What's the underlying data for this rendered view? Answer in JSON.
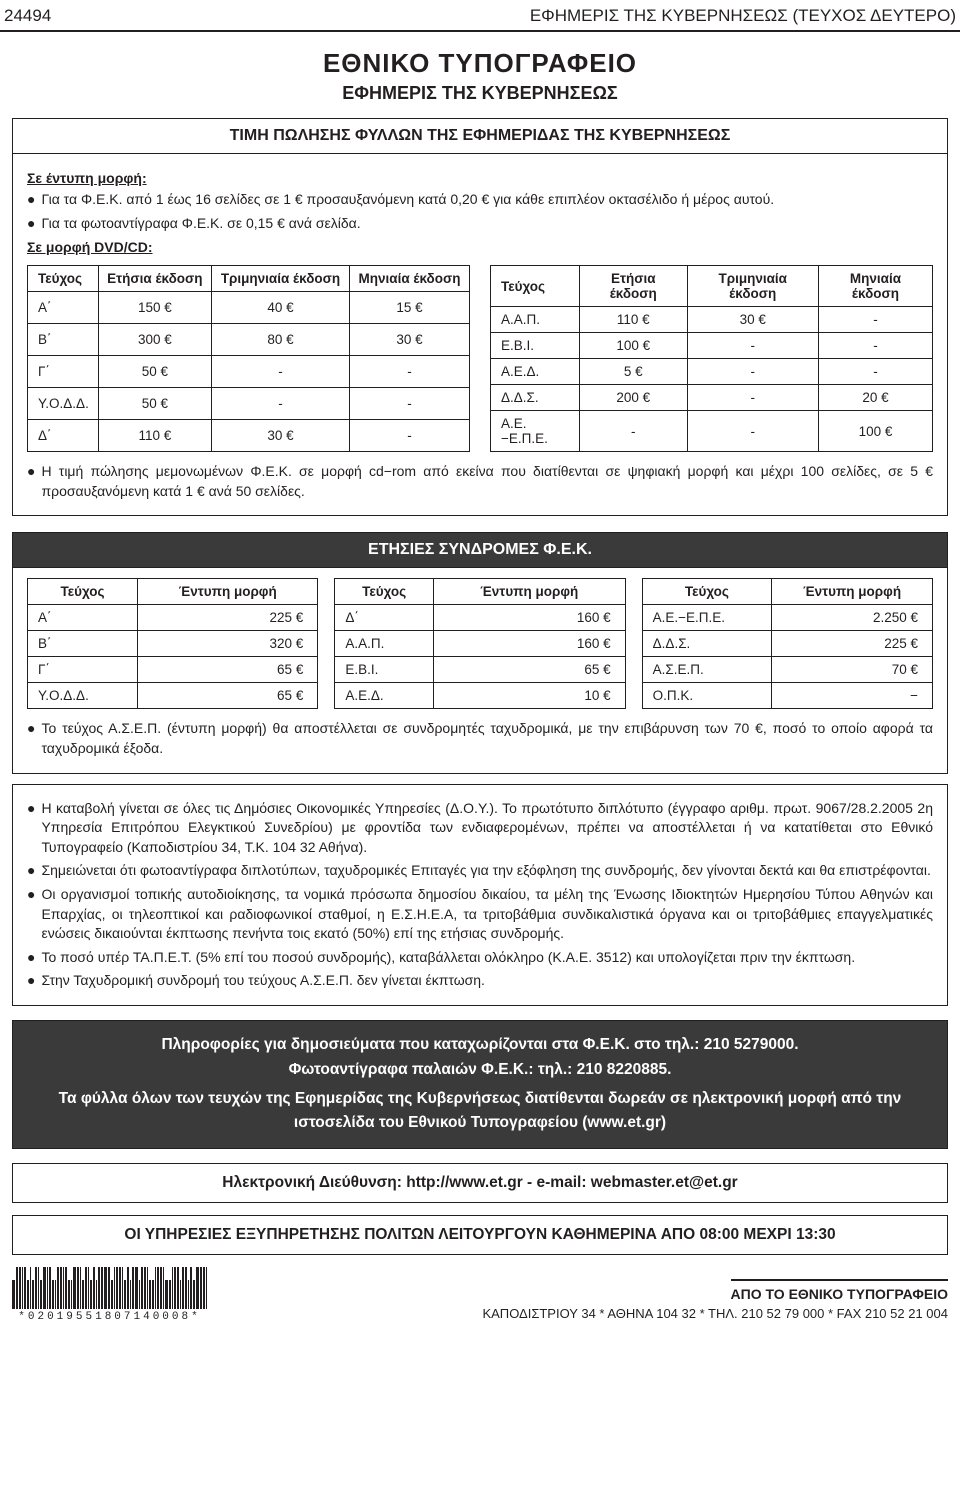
{
  "header": {
    "page_number": "24494",
    "running_title": "ΕΦΗΜΕΡΙΣ ΤΗΣ ΚΥΒΕΡΝΗΣΕΩΣ (ΤΕΥΧΟΣ ΔΕΥΤΕΡΟ)"
  },
  "titles": {
    "main": "ΕΘΝΙΚΟ ΤΥΠΟΓΡΑΦΕΙΟ",
    "sub": "ΕΦΗΜΕΡΙΣ ΤΗΣ ΚΥΒΕΡΝΗΣΕΩΣ"
  },
  "sale": {
    "heading": "ΤΙΜΗ ΠΩΛΗΣΗΣ ΦΥΛΛΩΝ ΤΗΣ ΕΦΗΜΕΡΙΔΑΣ ΤΗΣ ΚΥΒΕΡΝΗΣΕΩΣ",
    "printed_label": "Σε έντυπη μορφή:",
    "b1": "Για τα Φ.Ε.Κ. από 1 έως 16 σελίδες σε 1 € προσαυξανόμενη κατά 0,20 € για κάθε επιπλέον οκτασέλιδο ή μέρος αυτού.",
    "b2": "Για τα φωτοαντίγραφα Φ.Ε.Κ. σε 0,15 € ανά σελίδα.",
    "dvd_label": "Σε μορφή DVD/CD:",
    "cols": [
      "Τεύχος",
      "Ετήσια έκδοση",
      "Τριμηνιαία έκδοση",
      "Μηνιαία έκδοση"
    ],
    "left_rows": [
      [
        "Α΄",
        "150 €",
        "40 €",
        "15 €"
      ],
      [
        "Β΄",
        "300 €",
        "80 €",
        "30 €"
      ],
      [
        "Γ΄",
        "50 €",
        "-",
        "-"
      ],
      [
        "Υ.Ο.Δ.Δ.",
        "50 €",
        "-",
        "-"
      ],
      [
        "Δ΄",
        "110 €",
        "30 €",
        "-"
      ]
    ],
    "right_rows": [
      [
        "Α.Α.Π.",
        "110 €",
        "30 €",
        "-"
      ],
      [
        "Ε.Β.Ι.",
        "100 €",
        "-",
        "-"
      ],
      [
        "Α.Ε.Δ.",
        "5 €",
        "-",
        "-"
      ],
      [
        "Δ.Δ.Σ.",
        "200 €",
        "-",
        "20 €"
      ],
      [
        "Α.Ε.−Ε.Π.Ε.",
        "-",
        "-",
        "100 €"
      ]
    ],
    "note": "Η τιμή πώλησης μεμονωμένων Φ.Ε.Κ. σε μορφή cd−rom από εκείνα που διατίθενται σε ψηφιακή μορφή και μέχρι 100 σελίδες, σε 5 € προσαυξανόμενη κατά 1 € ανά 50 σελίδες."
  },
  "subs": {
    "heading": "ΕΤΗΣΙΕΣ ΣΥΝΔΡΟΜΕΣ Φ.Ε.Κ.",
    "cols": [
      "Τεύχος",
      "Έντυπη μορφή"
    ],
    "t1": [
      [
        "Α΄",
        "225 €"
      ],
      [
        "Β΄",
        "320 €"
      ],
      [
        "Γ΄",
        "65 €"
      ],
      [
        "Υ.Ο.Δ.Δ.",
        "65 €"
      ]
    ],
    "t2": [
      [
        "Δ΄",
        "160 €"
      ],
      [
        "Α.Α.Π.",
        "160 €"
      ],
      [
        "Ε.Β.Ι.",
        "65 €"
      ],
      [
        "Α.Ε.Δ.",
        "10 €"
      ]
    ],
    "t3": [
      [
        "Α.Ε.−Ε.Π.Ε.",
        "2.250 €"
      ],
      [
        "Δ.Δ.Σ.",
        "225 €"
      ],
      [
        "Α.Σ.Ε.Π.",
        "70 €"
      ],
      [
        "Ο.Π.Κ.",
        "−"
      ]
    ],
    "note": "Το τεύχος Α.Σ.Ε.Π. (έντυπη μορφή) θα αποστέλλεται σε συνδρομητές ταχυδρομικά, με την επιβάρυνση των 70 €, ποσό το οποίο αφορά τα ταχυδρομικά έξοδα."
  },
  "notes": {
    "n1": "Η καταβολή γίνεται σε όλες τις Δημόσιες Οικονομικές Υπηρεσίες (Δ.Ο.Υ.). Το πρωτότυπο διπλότυπο (έγγραφο αριθμ. πρωτ. 9067/28.2.2005 2η Υπηρεσία Επιτρόπου Ελεγκτικού Συνεδρίου) με φροντίδα των ενδιαφερομένων, πρέπει να αποστέλλεται ή να κατατίθεται στο Εθνικό Τυπογραφείο (Καποδιστρίου 34, Τ.Κ. 104 32 Αθήνα).",
    "n2": "Σημειώνεται ότι φωτοαντίγραφα διπλοτύπων, ταχυδρομικές Επιταγές για την εξόφληση της συνδρομής, δεν γίνονται δεκτά και θα επιστρέφονται.",
    "n3": "Οι οργανισμοί τοπικής αυτοδιοίκησης, τα νομικά πρόσωπα δημοσίου δικαίου, τα μέλη της Ένωσης Ιδιοκτητών Ημερησίου Τύπου Αθηνών και Επαρχίας, οι τηλεοπτικοί και ραδιοφωνικοί σταθμοί, η Ε.Σ.Η.Ε.Α, τα τριτοβάθμια συνδικαλιστικά όργανα και οι τριτοβάθμιες επαγγελματικές ενώσεις δικαιούνται έκπτωσης πενήντα τοις εκατό (50%) επί της ετήσιας συνδρομής.",
    "n4": "Το ποσό υπέρ ΤΑ.Π.Ε.Τ. (5% επί του ποσού συνδρομής), καταβάλλεται ολόκληρο (Κ.Α.Ε. 3512) και υπολογίζεται πριν την έκπτωση.",
    "n5": "Στην Ταχυδρομική συνδρομή του τεύχους Α.Σ.Ε.Π. δεν γίνεται έκπτωση."
  },
  "contact": {
    "l1": "Πληροφορίες  για δημοσιεύματα που καταχωρίζονται στα Φ.Ε.Κ.  στο τηλ.: 210 5279000.",
    "l2": "Φωτοαντίγραφα παλαιών Φ.Ε.Κ.: τηλ.: 210 8220885.",
    "l3": "Τα φύλλα όλων των τευχών της Εφημερίδας της Κυβερνήσεως διατίθενται δωρεάν σε ηλεκτρονική μορφή από την ιστοσελίδα του Εθνικού Τυπογραφείου (www.et.gr)"
  },
  "web_line": "Ηλεκτρονική Διεύθυνση: http://www.et.gr - e-mail: webmaster.et@et.gr",
  "hours_line": "ΟΙ ΥΠΗΡΕΣΙΕΣ ΕΞΥΠΗΡΕΤΗΣΗΣ ΠΟΛΙΤΩΝ ΛΕΙΤΟΥΡΓΟΥΝ ΚΑΘΗΜΕΡΙΝΑ ΑΠΟ 08:00 ΜΕΧΡΙ 13:30",
  "footer": {
    "barcode_text": "*02019551807140008*",
    "apo1": "ΑΠΟ ΤΟ ΕΘΝΙΚΟ ΤΥΠΟΓΡΑΦΕΙΟ",
    "apo2": "ΚΑΠΟΔΙΣΤΡΙΟΥ 34 * ΑΘΗΝΑ 104 32 * ΤΗΛ. 210 52 79 000 * FAX 210 52 21 004"
  }
}
